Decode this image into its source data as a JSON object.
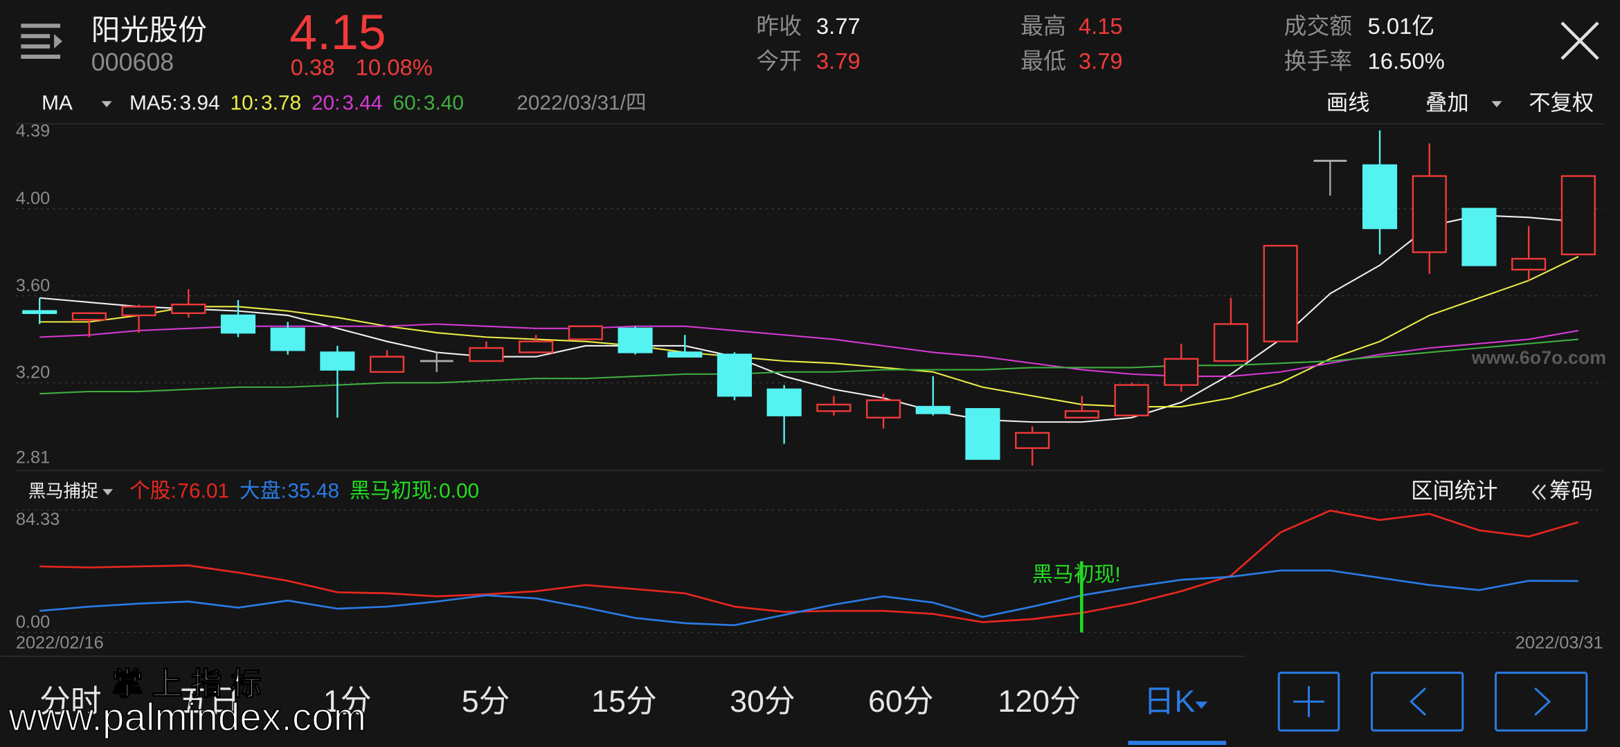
{
  "header": {
    "name": "阳光股份",
    "code": "000608",
    "price": "4.15",
    "change": "0.38",
    "change_pct": "10.08%",
    "stats": [
      {
        "label": "昨收",
        "value": "3.77"
      },
      {
        "label": "今开",
        "value": "3.79"
      },
      {
        "label": "最高",
        "value": "4.15"
      },
      {
        "label": "最低",
        "value": "3.79"
      },
      {
        "label": "成交额",
        "value": "5.01亿"
      },
      {
        "label": "换手率",
        "value": "16.50%"
      }
    ]
  },
  "toolbar": {
    "indicator": "MA",
    "date": "2022/03/31/四",
    "actions": [
      "画线",
      "叠加",
      "不复权"
    ]
  },
  "kline": {
    "ylim": [
      2.81,
      4.39
    ],
    "yticks": [
      4.39,
      {
        "value": 4,
        "label": "4.00"
      },
      {
        "value": 3.6,
        "label": "3.60"
      },
      {
        "value": 3.2,
        "label": "3.20"
      },
      2.81
    ],
    "candles": [
      [
        3.53,
        3.59,
        3.47,
        3.52
      ],
      [
        3.49,
        3.52,
        3.41,
        3.52
      ],
      [
        3.51,
        3.56,
        3.43,
        3.55
      ],
      [
        3.52,
        3.63,
        3.5,
        3.56
      ],
      [
        3.51,
        3.58,
        3.41,
        3.43
      ],
      [
        3.45,
        3.48,
        3.33,
        3.35
      ],
      [
        3.34,
        3.37,
        3.04,
        3.26
      ],
      [
        3.25,
        3.35,
        3.25,
        3.32
      ],
      [
        3.3,
        3.34,
        3.25,
        3.3
      ],
      [
        3.3,
        3.39,
        3.3,
        3.36
      ],
      [
        3.34,
        3.42,
        3.34,
        3.39
      ],
      [
        3.4,
        3.46,
        3.4,
        3.46
      ],
      [
        3.45,
        3.46,
        3.33,
        3.34
      ],
      [
        3.34,
        3.42,
        3.32,
        3.32
      ],
      [
        3.33,
        3.34,
        3.12,
        3.14
      ],
      [
        3.17,
        3.19,
        2.92,
        3.05
      ],
      [
        3.07,
        3.14,
        3.05,
        3.1
      ],
      [
        3.04,
        3.15,
        2.99,
        3.12
      ],
      [
        3.09,
        3.23,
        3.05,
        3.06
      ],
      [
        3.08,
        3.08,
        2.85,
        2.85
      ],
      [
        2.9,
        3.0,
        2.82,
        2.97
      ],
      [
        3.04,
        3.14,
        3.04,
        3.07
      ],
      [
        3.05,
        3.2,
        3.05,
        3.19
      ],
      [
        3.19,
        3.38,
        3.16,
        3.31
      ],
      [
        3.3,
        3.59,
        3.3,
        3.47
      ],
      [
        3.39,
        3.83,
        3.39,
        3.83
      ],
      [
        4.22,
        4.22,
        4.06,
        4.22
      ],
      [
        4.2,
        4.36,
        3.79,
        3.91
      ],
      [
        3.8,
        4.3,
        3.7,
        4.15
      ],
      [
        4.0,
        4.0,
        3.74,
        3.74
      ],
      [
        3.72,
        3.92,
        3.67,
        3.77
      ],
      [
        3.79,
        4.15,
        3.79,
        4.15
      ]
    ],
    "ma": [
      {
        "name": "MA5:",
        "value": "3.94",
        "color": "#f0f0f0",
        "values": [
          3.59,
          3.57,
          3.55,
          3.54,
          3.53,
          3.51,
          3.45,
          3.39,
          3.34,
          3.32,
          3.32,
          3.37,
          3.37,
          3.37,
          3.32,
          3.23,
          3.17,
          3.13,
          3.07,
          3.03,
          3.02,
          3.02,
          3.04,
          3.11,
          3.24,
          3.4,
          3.61,
          3.74,
          3.92,
          3.97,
          3.96,
          3.94
        ]
      },
      {
        "name": "10:",
        "value": "3.78",
        "color": "#ecec48",
        "values": [
          3.48,
          3.48,
          3.51,
          3.55,
          3.55,
          3.53,
          3.5,
          3.46,
          3.43,
          3.41,
          3.4,
          3.39,
          3.37,
          3.34,
          3.32,
          3.3,
          3.29,
          3.27,
          3.25,
          3.18,
          3.14,
          3.1,
          3.09,
          3.09,
          3.13,
          3.2,
          3.31,
          3.39,
          3.51,
          3.59,
          3.67,
          3.78
        ]
      },
      {
        "name": "20:",
        "value": "3.44",
        "color": "#d43ad4",
        "values": [
          3.41,
          3.42,
          3.44,
          3.45,
          3.46,
          3.46,
          3.46,
          3.46,
          3.47,
          3.46,
          3.45,
          3.45,
          3.46,
          3.46,
          3.44,
          3.42,
          3.4,
          3.37,
          3.34,
          3.32,
          3.29,
          3.26,
          3.24,
          3.23,
          3.23,
          3.25,
          3.29,
          3.33,
          3.36,
          3.38,
          3.4,
          3.44
        ]
      },
      {
        "name": "60:",
        "value": "3.40",
        "color": "#3fae3f",
        "values": [
          3.15,
          3.16,
          3.16,
          3.17,
          3.18,
          3.18,
          3.19,
          3.2,
          3.2,
          3.21,
          3.22,
          3.22,
          3.23,
          3.24,
          3.24,
          3.25,
          3.25,
          3.26,
          3.26,
          3.26,
          3.27,
          3.27,
          3.27,
          3.28,
          3.28,
          3.29,
          3.3,
          3.32,
          3.34,
          3.36,
          3.38,
          3.4
        ]
      }
    ],
    "watermark": "www.6o7o.com"
  },
  "indicator": {
    "title": "黑马捕捉",
    "ylim": [
      0,
      84.33
    ],
    "yticks": [
      84.33,
      {
        "value": 0,
        "label": "0.00"
      }
    ],
    "series": [
      {
        "name": "个股:",
        "value": "76.01",
        "color": "#e8271f",
        "values": [
          45.5,
          44.8,
          45.5,
          46.2,
          41.3,
          35.6,
          27.7,
          27.0,
          24.9,
          26.3,
          28.4,
          32.7,
          29.9,
          27.0,
          17.8,
          14.2,
          14.9,
          14.9,
          12.8,
          7.1,
          9.2,
          13.5,
          19.9,
          28.4,
          39.1,
          69.0,
          84.0,
          77.5,
          81.8,
          70.4,
          66.1,
          76.01
        ]
      },
      {
        "name": "大盘:",
        "value": "35.48",
        "color": "#2a7be4",
        "values": [
          14.9,
          17.8,
          19.9,
          21.3,
          17.1,
          22.0,
          16.4,
          17.8,
          21.3,
          25.6,
          23.5,
          17.1,
          10.0,
          6.4,
          5.0,
          12.1,
          19.2,
          24.9,
          20.6,
          10.7,
          17.8,
          25.6,
          31.3,
          36.3,
          38.4,
          42.7,
          42.7,
          37.7,
          32.7,
          29.2,
          35.6,
          35.48
        ]
      },
      {
        "name": "黑马初现:",
        "value": "0.00",
        "color": "#22dd22"
      }
    ],
    "signal_label": "黑马初现!",
    "actions": [
      "区间统计",
      "筹码"
    ]
  },
  "dates": [
    "2022/02/16",
    "2022/03/31"
  ],
  "tabs": [
    "分时",
    "五日",
    "1分",
    "5分",
    "15分",
    "30分",
    "60分",
    "120分",
    "日K"
  ],
  "watermark": {
    "line1": "掌 上 指 标",
    "line2": "www.palmindex.com"
  }
}
